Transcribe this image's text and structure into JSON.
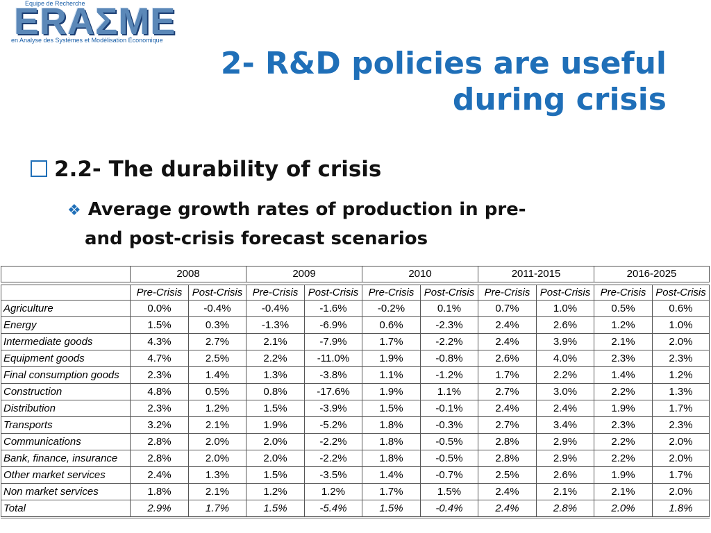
{
  "logo": {
    "tag_top": "Equipe de Recherche",
    "word": "ERAΣME",
    "tag_bottom": "en Analyse des Systèmes et Modélisation Économique"
  },
  "title": {
    "line1": "2- R&D policies are useful",
    "line2": "during crisis"
  },
  "bullet1": "2.2- The durability of crisis",
  "bullet2": {
    "line1": "Average growth rates of production in pre-",
    "line2": "and post-crisis forecast scenarios"
  },
  "colors": {
    "title": "#1f6fb8",
    "bullet_icon": "#1f6fb8"
  },
  "icons": {
    "bullet1": "square-outline-icon",
    "bullet2": "diamond-cluster-icon"
  },
  "table": {
    "years": [
      "2008",
      "2009",
      "2010",
      "2011-2015",
      "2016-2025"
    ],
    "subheaders": [
      "Pre-Crisis",
      "Post-Crisis"
    ],
    "rows": [
      {
        "label": "Agriculture",
        "values": [
          "0.0%",
          "-0.4%",
          "-0.4%",
          "-1.6%",
          "-0.2%",
          "0.1%",
          "0.7%",
          "1.0%",
          "0.5%",
          "0.6%"
        ]
      },
      {
        "label": "Energy",
        "values": [
          "1.5%",
          "0.3%",
          "-1.3%",
          "-6.9%",
          "0.6%",
          "-2.3%",
          "2.4%",
          "2.6%",
          "1.2%",
          "1.0%"
        ]
      },
      {
        "label": "Intermediate goods",
        "values": [
          "4.3%",
          "2.7%",
          "2.1%",
          "-7.9%",
          "1.7%",
          "-2.2%",
          "2.4%",
          "3.9%",
          "2.1%",
          "2.0%"
        ]
      },
      {
        "label": "Equipment goods",
        "values": [
          "4.7%",
          "2.5%",
          "2.2%",
          "-11.0%",
          "1.9%",
          "-0.8%",
          "2.6%",
          "4.0%",
          "2.3%",
          "2.3%"
        ]
      },
      {
        "label": "Final consumption goods",
        "values": [
          "2.3%",
          "1.4%",
          "1.3%",
          "-3.8%",
          "1.1%",
          "-1.2%",
          "1.7%",
          "2.2%",
          "1.4%",
          "1.2%"
        ]
      },
      {
        "label": "Construction",
        "values": [
          "4.8%",
          "0.5%",
          "0.8%",
          "-17.6%",
          "1.9%",
          "1.1%",
          "2.7%",
          "3.0%",
          "2.2%",
          "1.3%"
        ]
      },
      {
        "label": "Distribution",
        "values": [
          "2.3%",
          "1.2%",
          "1.5%",
          "-3.9%",
          "1.5%",
          "-0.1%",
          "2.4%",
          "2.4%",
          "1.9%",
          "1.7%"
        ]
      },
      {
        "label": "Transports",
        "values": [
          "3.2%",
          "2.1%",
          "1.9%",
          "-5.2%",
          "1.8%",
          "-0.3%",
          "2.7%",
          "3.4%",
          "2.3%",
          "2.3%"
        ]
      },
      {
        "label": "Communications",
        "values": [
          "2.8%",
          "2.0%",
          "2.0%",
          "-2.2%",
          "1.8%",
          "-0.5%",
          "2.8%",
          "2.9%",
          "2.2%",
          "2.0%"
        ]
      },
      {
        "label": "Bank, finance, insurance",
        "values": [
          "2.8%",
          "2.0%",
          "2.0%",
          "-2.2%",
          "1.8%",
          "-0.5%",
          "2.8%",
          "2.9%",
          "2.2%",
          "2.0%"
        ]
      },
      {
        "label": "Other market services",
        "values": [
          "2.4%",
          "1.3%",
          "1.5%",
          "-3.5%",
          "1.4%",
          "-0.7%",
          "2.5%",
          "2.6%",
          "1.9%",
          "1.7%"
        ]
      },
      {
        "label": "Non market services",
        "values": [
          "1.8%",
          "2.1%",
          "1.2%",
          "1.2%",
          "1.7%",
          "1.5%",
          "2.4%",
          "2.1%",
          "2.1%",
          "2.0%"
        ]
      },
      {
        "label": "Total",
        "values": [
          "2.9%",
          "1.7%",
          "1.5%",
          "-5.4%",
          "1.5%",
          "-0.4%",
          "2.4%",
          "2.8%",
          "2.0%",
          "1.8%"
        ]
      }
    ]
  }
}
